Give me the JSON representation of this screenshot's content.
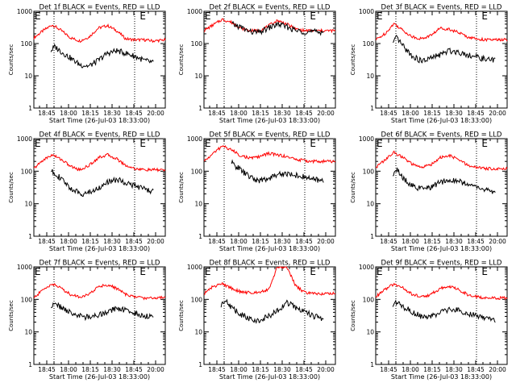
{
  "chart_data": [
    {
      "type": "line",
      "title": "Det 1f BLACK = Events, RED = LLD",
      "xlabel": "Start Time (26-Jul-03 18:33:00)",
      "ylabel": "Counts/sec",
      "yscale": "log",
      "ylim": [
        1,
        1000
      ],
      "xlim": [
        0,
        100
      ],
      "x_tick_labels": [
        "18:45",
        "18:00",
        "18:15",
        "18:30",
        "18:45",
        "20:00"
      ],
      "y_tick_labels": [
        "1",
        "10",
        "100",
        "1000"
      ],
      "markers": [
        {
          "x": 0,
          "label": "E"
        },
        {
          "x": 80,
          "label": "E"
        }
      ],
      "grid": false,
      "series": [
        {
          "name": "RED",
          "color": "#ff0000",
          "x": [
            0,
            7,
            14,
            21,
            28,
            35,
            42,
            49,
            56,
            63,
            70,
            77,
            84,
            91,
            100
          ],
          "values": [
            150,
            250,
            380,
            250,
            150,
            120,
            160,
            300,
            360,
            250,
            140,
            130,
            130,
            120,
            130
          ]
        },
        {
          "name": "BLACK",
          "color": "#000000",
          "x": [
            13,
            16,
            21,
            28,
            35,
            42,
            49,
            56,
            63,
            70,
            77,
            84,
            91
          ],
          "values": [
            60,
            80,
            55,
            35,
            22,
            20,
            30,
            50,
            60,
            50,
            40,
            30,
            25
          ]
        }
      ]
    },
    {
      "type": "line",
      "title": "Det 2f BLACK = Events, RED = LLD",
      "xlabel": "Start Time (26-Jul-03 18:33:00)",
      "ylabel": "Counts/sec",
      "yscale": "log",
      "ylim": [
        1,
        1000
      ],
      "xlim": [
        0,
        100
      ],
      "x_tick_labels": [
        "18:45",
        "18:00",
        "18:15",
        "18:30",
        "18:45",
        "20:00"
      ],
      "y_tick_labels": [
        "1",
        "10",
        "100",
        "1000"
      ],
      "markers": [
        {
          "x": 0,
          "label": "E"
        },
        {
          "x": 80,
          "label": "E"
        }
      ],
      "grid": false,
      "series": [
        {
          "name": "RED",
          "color": "#ff0000",
          "x": [
            0,
            7,
            14,
            21,
            28,
            35,
            42,
            49,
            56,
            63,
            70,
            77,
            84,
            91,
            100
          ],
          "values": [
            250,
            380,
            560,
            450,
            300,
            250,
            250,
            350,
            520,
            400,
            280,
            250,
            250,
            250,
            250
          ]
        },
        {
          "name": "BLACK",
          "color": "#000000",
          "x": [
            21,
            28,
            35,
            42,
            49,
            56,
            63,
            70,
            77,
            84,
            91
          ],
          "values": [
            400,
            320,
            230,
            220,
            300,
            400,
            330,
            250,
            230,
            230,
            230
          ]
        }
      ]
    },
    {
      "type": "line",
      "title": "Det 3f BLACK = Events, RED = LLD",
      "xlabel": "Start Time (26-Jul-03 18:33:00)",
      "ylabel": "Counts/sec",
      "yscale": "log",
      "ylim": [
        1,
        1000
      ],
      "xlim": [
        0,
        100
      ],
      "x_tick_labels": [
        "18:45",
        "18:00",
        "18:15",
        "18:30",
        "18:45",
        "20:00"
      ],
      "y_tick_labels": [
        "1",
        "10",
        "100",
        "1000"
      ],
      "markers": [
        {
          "x": 0,
          "label": "E"
        },
        {
          "x": 80,
          "label": "E"
        }
      ],
      "grid": false,
      "series": [
        {
          "name": "RED",
          "color": "#ff0000",
          "x": [
            0,
            7,
            14,
            21,
            28,
            35,
            42,
            49,
            56,
            63,
            70,
            77,
            84,
            91,
            100
          ],
          "values": [
            130,
            200,
            420,
            250,
            160,
            140,
            180,
            300,
            280,
            220,
            160,
            140,
            130,
            130,
            130
          ]
        },
        {
          "name": "BLACK",
          "color": "#000000",
          "x": [
            13,
            16,
            21,
            28,
            35,
            42,
            49,
            56,
            63,
            70,
            77,
            84,
            91
          ],
          "values": [
            100,
            150,
            80,
            40,
            28,
            35,
            45,
            60,
            55,
            45,
            38,
            32,
            30
          ]
        }
      ]
    },
    {
      "type": "line",
      "title": "Det 4f BLACK = Events, RED = LLD",
      "xlabel": "Start Time (26-Jul-03 18:33:00)",
      "ylabel": "Counts/sec",
      "yscale": "log",
      "ylim": [
        1,
        1000
      ],
      "xlim": [
        0,
        100
      ],
      "x_tick_labels": [
        "18:45",
        "18:00",
        "18:15",
        "18:30",
        "18:45",
        "20:00"
      ],
      "y_tick_labels": [
        "1",
        "10",
        "100",
        "1000"
      ],
      "markers": [
        {
          "x": 0,
          "label": "E"
        },
        {
          "x": 80,
          "label": "E"
        }
      ],
      "grid": false,
      "series": [
        {
          "name": "RED",
          "color": "#ff0000",
          "x": [
            0,
            7,
            14,
            21,
            28,
            35,
            42,
            49,
            56,
            63,
            70,
            77,
            84,
            91,
            100
          ],
          "values": [
            120,
            220,
            320,
            230,
            140,
            110,
            150,
            260,
            320,
            240,
            150,
            120,
            110,
            110,
            110
          ]
        },
        {
          "name": "BLACK",
          "color": "#000000",
          "x": [
            13,
            16,
            21,
            28,
            35,
            42,
            49,
            56,
            63,
            70,
            77,
            84,
            91
          ],
          "values": [
            100,
            90,
            55,
            30,
            20,
            22,
            30,
            45,
            55,
            45,
            35,
            28,
            24
          ]
        }
      ]
    },
    {
      "type": "line",
      "title": "Det 5f BLACK = Events, RED = LLD",
      "xlabel": "Start Time (26-Jul-03 18:33:00)",
      "ylabel": "Counts/sec",
      "yscale": "log",
      "ylim": [
        1,
        1000
      ],
      "xlim": [
        0,
        100
      ],
      "x_tick_labels": [
        "18:45",
        "18:00",
        "18:15",
        "18:30",
        "18:45",
        "20:00"
      ],
      "y_tick_labels": [
        "1",
        "10",
        "100",
        "1000"
      ],
      "markers": [
        {
          "x": 0,
          "label": "E"
        },
        {
          "x": 80,
          "label": "E"
        }
      ],
      "grid": false,
      "series": [
        {
          "name": "RED",
          "color": "#ff0000",
          "x": [
            0,
            7,
            14,
            21,
            28,
            35,
            42,
            49,
            56,
            63,
            70,
            77,
            84,
            91,
            100
          ],
          "values": [
            200,
            350,
            600,
            450,
            300,
            250,
            280,
            350,
            320,
            280,
            230,
            210,
            200,
            200,
            200
          ]
        },
        {
          "name": "BLACK",
          "color": "#000000",
          "x": [
            21,
            28,
            35,
            42,
            49,
            56,
            63,
            70,
            77,
            84,
            91
          ],
          "values": [
            180,
            110,
            65,
            50,
            60,
            80,
            85,
            75,
            65,
            55,
            50
          ]
        }
      ]
    },
    {
      "type": "line",
      "title": "Det 6f BLACK = Events, RED = LLD",
      "xlabel": "Start Time (26-Jul-03 18:33:00)",
      "ylabel": "Counts/sec",
      "yscale": "log",
      "ylim": [
        1,
        1000
      ],
      "xlim": [
        0,
        100
      ],
      "x_tick_labels": [
        "18:45",
        "18:00",
        "18:15",
        "18:30",
        "18:45",
        "20:00"
      ],
      "y_tick_labels": [
        "1",
        "10",
        "100",
        "1000"
      ],
      "markers": [
        {
          "x": 0,
          "label": "E"
        },
        {
          "x": 80,
          "label": "E"
        }
      ],
      "grid": false,
      "series": [
        {
          "name": "RED",
          "color": "#ff0000",
          "x": [
            0,
            7,
            14,
            21,
            28,
            35,
            42,
            49,
            56,
            63,
            70,
            77,
            84,
            91,
            100
          ],
          "values": [
            130,
            220,
            380,
            260,
            160,
            130,
            160,
            260,
            300,
            230,
            150,
            130,
            120,
            120,
            120
          ]
        },
        {
          "name": "BLACK",
          "color": "#000000",
          "x": [
            13,
            16,
            21,
            28,
            35,
            42,
            49,
            56,
            63,
            70,
            77,
            84,
            91
          ],
          "values": [
            80,
            110,
            60,
            35,
            28,
            32,
            45,
            55,
            50,
            40,
            32,
            26,
            22
          ]
        }
      ]
    },
    {
      "type": "line",
      "title": "Det 7f BLACK = Events, RED = LLD",
      "xlabel": "Start Time (26-Jul-03 18:33:00)",
      "ylabel": "Counts/sec",
      "yscale": "log",
      "ylim": [
        1,
        1000
      ],
      "xlim": [
        0,
        100
      ],
      "x_tick_labels": [
        "18:45",
        "18:00",
        "18:15",
        "18:30",
        "18:45",
        "20:00"
      ],
      "y_tick_labels": [
        "1",
        "10",
        "100",
        "1000"
      ],
      "markers": [
        {
          "x": 0,
          "label": "E"
        },
        {
          "x": 80,
          "label": "E"
        }
      ],
      "grid": false,
      "series": [
        {
          "name": "RED",
          "color": "#ff0000",
          "x": [
            0,
            7,
            14,
            21,
            28,
            35,
            42,
            49,
            56,
            63,
            70,
            77,
            84,
            91,
            100
          ],
          "values": [
            110,
            200,
            300,
            220,
            140,
            120,
            140,
            250,
            280,
            220,
            140,
            120,
            110,
            110,
            120
          ]
        },
        {
          "name": "BLACK",
          "color": "#000000",
          "x": [
            13,
            16,
            21,
            28,
            35,
            42,
            49,
            56,
            63,
            70,
            77,
            84,
            91
          ],
          "values": [
            60,
            75,
            55,
            40,
            30,
            28,
            32,
            42,
            55,
            45,
            38,
            32,
            30
          ]
        }
      ]
    },
    {
      "type": "line",
      "title": "Det 8f BLACK = Events, RED = LLD",
      "xlabel": "Start Time (26-Jul-03 18:33:00)",
      "ylabel": "Counts/sec",
      "yscale": "log",
      "ylim": [
        1,
        1000
      ],
      "xlim": [
        0,
        100
      ],
      "x_tick_labels": [
        "18:45",
        "18:00",
        "18:15",
        "18:30",
        "18:45",
        "20:00"
      ],
      "y_tick_labels": [
        "1",
        "10",
        "100",
        "1000"
      ],
      "markers": [
        {
          "x": 0,
          "label": "E"
        },
        {
          "x": 80,
          "label": "E"
        }
      ],
      "grid": false,
      "series": [
        {
          "name": "RED",
          "color": "#ff0000",
          "x": [
            0,
            7,
            14,
            21,
            28,
            35,
            42,
            49,
            56,
            63,
            70,
            77,
            84,
            91,
            100
          ],
          "values": [
            150,
            250,
            300,
            220,
            170,
            160,
            170,
            200,
            1000,
            1000,
            250,
            160,
            150,
            150,
            150
          ]
        },
        {
          "name": "BLACK",
          "color": "#000000",
          "x": [
            13,
            16,
            21,
            28,
            35,
            42,
            49,
            56,
            63,
            70,
            77,
            84,
            91
          ],
          "values": [
            70,
            100,
            55,
            35,
            25,
            22,
            30,
            45,
            80,
            55,
            40,
            30,
            25
          ]
        }
      ]
    },
    {
      "type": "line",
      "title": "Det 9f BLACK = Events, RED = LLD",
      "xlabel": "Start Time (26-Jul-03 18:33:00)",
      "ylabel": "Counts/sec",
      "yscale": "log",
      "ylim": [
        1,
        1000
      ],
      "xlim": [
        0,
        100
      ],
      "x_tick_labels": [
        "18:45",
        "18:00",
        "18:15",
        "18:30",
        "18:45",
        "20:00"
      ],
      "y_tick_labels": [
        "1",
        "10",
        "100",
        "1000"
      ],
      "markers": [
        {
          "x": 0,
          "label": "E"
        },
        {
          "x": 80,
          "label": "E"
        }
      ],
      "grid": false,
      "series": [
        {
          "name": "RED",
          "color": "#ff0000",
          "x": [
            0,
            7,
            14,
            21,
            28,
            35,
            42,
            49,
            56,
            63,
            70,
            77,
            84,
            91,
            100
          ],
          "values": [
            120,
            200,
            300,
            220,
            140,
            120,
            140,
            220,
            250,
            200,
            140,
            120,
            110,
            110,
            110
          ]
        },
        {
          "name": "BLACK",
          "color": "#000000",
          "x": [
            13,
            16,
            21,
            28,
            35,
            42,
            49,
            56,
            63,
            70,
            77,
            84,
            91
          ],
          "values": [
            70,
            85,
            60,
            40,
            30,
            30,
            38,
            48,
            45,
            38,
            30,
            26,
            22
          ]
        }
      ]
    }
  ]
}
